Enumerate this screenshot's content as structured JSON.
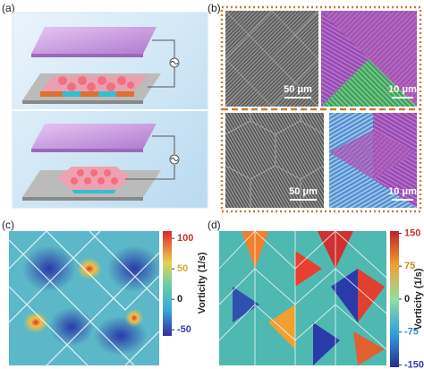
{
  "panels": {
    "a": {
      "label": "(a)"
    },
    "b": {
      "label": "(b)",
      "scale_bars": [
        "50 μm",
        "10 μm",
        "50 μm",
        "10 μm"
      ]
    },
    "c": {
      "label": "(c)",
      "colorbar": {
        "title": "Vorticity (1/s)",
        "range": [
          -60,
          112
        ],
        "ticks": [
          100,
          50,
          0,
          -50
        ],
        "tick_colors": [
          "#c0392b",
          "#c9b037",
          "#222222",
          "#3a3aa8"
        ]
      }
    },
    "d": {
      "label": "(d)",
      "colorbar": {
        "title": "Vorticity (1/s)",
        "range": [
          -155,
          155
        ],
        "ticks": [
          150,
          75,
          0,
          -75,
          -150
        ],
        "tick_colors": [
          "#c0392b",
          "#c98a1a",
          "#222222",
          "#2a8fc0",
          "#3a3aa8"
        ]
      }
    }
  }
}
